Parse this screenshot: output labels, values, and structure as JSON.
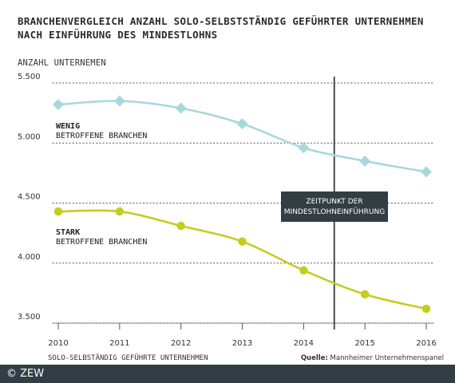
{
  "chart_data": {
    "type": "line",
    "title": [
      "BRANCHENVERGLEICH ANZAHL SOLO-SELBSTSTÄNDIG GEFÜHRTER UNTERNEHMEN",
      "NACH EINFÜHRUNG DES MINDESTLOHNS"
    ],
    "ylabel": "ANZAHL UNTERNEMEN",
    "xlabel": "SOLO-SELBSTÄNDIG GEFÜHRTE UNTERNEHMEN",
    "x": [
      2010,
      2011,
      2012,
      2013,
      2014,
      2015,
      2016
    ],
    "ylim": [
      3500,
      5500
    ],
    "yticks": [
      {
        "value": 5500,
        "label": "5.500"
      },
      {
        "value": 5000,
        "label": "5.000"
      },
      {
        "value": 4500,
        "label": "4.500"
      },
      {
        "value": 4000,
        "label": "4.000"
      },
      {
        "value": 3500,
        "label": "3.500"
      }
    ],
    "grid": "horizontal-dotted",
    "series": [
      {
        "name_line1": "WENIG",
        "name_line2": "BETROFFENE BRANCHEN",
        "color": "#a9d8dc",
        "marker": "diamond",
        "values": [
          5320,
          5350,
          5290,
          5160,
          4960,
          4850,
          4760
        ]
      },
      {
        "name_line1": "STARK",
        "name_line2": "BETROFFENE BRANCHEN",
        "color": "#c5cd1e",
        "marker": "circle",
        "values": [
          4430,
          4430,
          4310,
          4180,
          3940,
          3740,
          3620
        ]
      }
    ],
    "annotation": {
      "at_x": 2014.5,
      "line1": "ZEITPUNKT DER",
      "line2": "MINDESTLOHNEINFÜHRUNG"
    }
  },
  "source": {
    "label": "Quelle:",
    "text": " Mannheimer Unternehmenspanel"
  },
  "copyright": "© ZEW"
}
